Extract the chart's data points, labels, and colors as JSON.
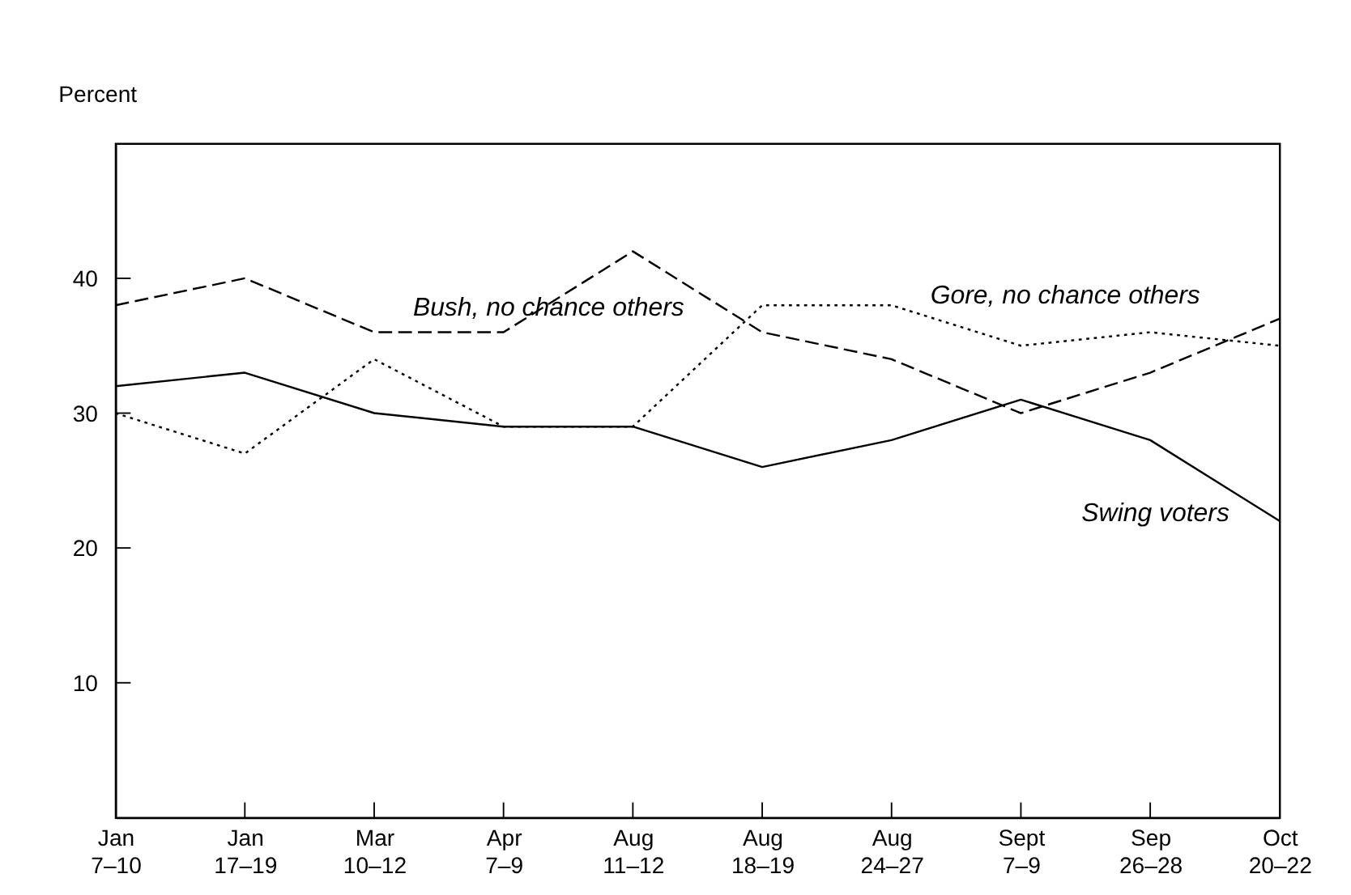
{
  "chart_data": {
    "type": "line",
    "ylabel": "Percent",
    "categories": [
      "Jan 7–10",
      "Jan 17–19",
      "Mar 10–12",
      "Apr 7–9",
      "Aug 11–12",
      "Aug 18–19",
      "Aug 24–27",
      "Sept 7–9",
      "Sep 26–28",
      "Oct 20–22"
    ],
    "series": [
      {
        "name": "Bush, no chance others",
        "color": "#000000",
        "line_style": "dashed",
        "values": [
          38,
          40,
          36,
          36,
          42,
          36,
          34,
          30,
          33,
          37
        ]
      },
      {
        "name": "Gore, no chance others",
        "color": "#000000",
        "line_style": "dotted",
        "values": [
          30,
          27,
          34,
          29,
          29,
          38,
          38,
          35,
          36,
          35
        ]
      },
      {
        "name": "Swing voters",
        "color": "#000000",
        "line_style": "solid",
        "values": [
          32,
          33,
          30,
          29,
          29,
          26,
          28,
          31,
          28,
          22
        ]
      }
    ],
    "ylim": [
      0,
      50
    ],
    "yticks": [
      10,
      20,
      30,
      40
    ],
    "grid": false,
    "marker": "none"
  }
}
